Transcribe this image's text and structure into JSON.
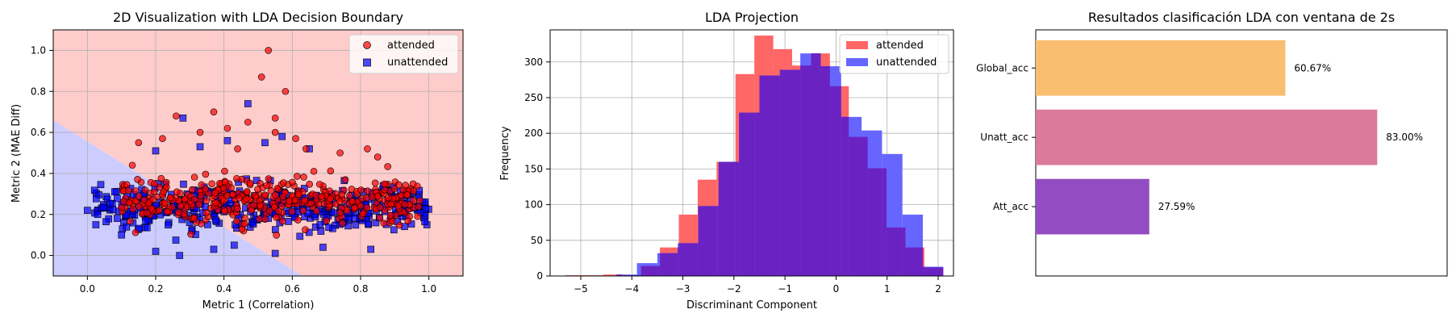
{
  "chart_data": [
    {
      "type": "scatter",
      "title": "2D Visualization with LDA Decision Boundary",
      "xlabel": "Metric 1 (Correlation)",
      "ylabel": "Metric 2 (MAE Diff)",
      "xlim": [
        -0.1,
        1.1
      ],
      "ylim": [
        -0.1,
        1.1
      ],
      "xticks": [
        "0.0",
        "0.2",
        "0.4",
        "0.6",
        "0.8",
        "1.0"
      ],
      "yticks": [
        "0.0",
        "0.2",
        "0.4",
        "0.6",
        "0.8",
        "1.0"
      ],
      "grid": true,
      "legend_position": "top-right",
      "boundary": {
        "line": [
          [
            -0.1,
            0.66
          ],
          [
            0.63,
            -0.1
          ]
        ],
        "region_above": "attended",
        "region_below": "unattended"
      },
      "series": [
        {
          "name": "attended",
          "marker": "circle",
          "color": "#ff0000",
          "region_color": "#ffcccc",
          "cloud": {
            "x_range": [
              0.1,
              0.98
            ],
            "y_center": 0.27,
            "y_spread": 0.08
          },
          "outliers": [
            [
              0.53,
              1.0
            ],
            [
              0.51,
              0.87
            ],
            [
              0.58,
              0.8
            ],
            [
              0.37,
              0.7
            ],
            [
              0.26,
              0.68
            ],
            [
              0.41,
              0.62
            ],
            [
              0.55,
              0.67
            ],
            [
              0.47,
              0.65
            ],
            [
              0.15,
              0.55
            ],
            [
              0.61,
              0.57
            ],
            [
              0.64,
              0.52
            ],
            [
              0.74,
              0.5
            ],
            [
              0.82,
              0.52
            ],
            [
              0.55,
              0.6
            ],
            [
              0.33,
              0.6
            ],
            [
              0.44,
              0.52
            ],
            [
              0.22,
              0.57
            ],
            [
              0.85,
              0.48
            ]
          ]
        },
        {
          "name": "unattended",
          "marker": "square",
          "color": "#0000ff",
          "region_color": "#ccccff",
          "cloud": {
            "x_range": [
              0.02,
              1.0
            ],
            "y_center": 0.23,
            "y_spread": 0.07
          },
          "outliers": [
            [
              0.47,
              0.74
            ],
            [
              0.28,
              0.67
            ],
            [
              0.57,
              0.58
            ],
            [
              0.41,
              0.56
            ],
            [
              0.52,
              0.55
            ],
            [
              0.33,
              0.53
            ],
            [
              0.2,
              0.51
            ],
            [
              0.65,
              0.52
            ],
            [
              0.0,
              0.22
            ],
            [
              0.03,
              0.2
            ],
            [
              0.1,
              0.1
            ],
            [
              0.2,
              0.02
            ],
            [
              0.37,
              0.03
            ],
            [
              0.55,
              0.01
            ],
            [
              0.69,
              0.04
            ],
            [
              0.83,
              0.03
            ],
            [
              0.27,
              0.0
            ],
            [
              0.43,
              0.05
            ]
          ]
        }
      ]
    },
    {
      "type": "histogram",
      "title": "LDA Projection",
      "xlabel": "Discriminant Component",
      "ylabel": "Frequency",
      "xlim": [
        -5.6,
        2.3
      ],
      "ylim": [
        0,
        345
      ],
      "xticks": [
        "−5",
        "−4",
        "−3",
        "−2",
        "−1",
        "0",
        "1",
        "2"
      ],
      "yticks": [
        "0",
        "50",
        "100",
        "150",
        "200",
        "250",
        "300"
      ],
      "grid": true,
      "legend_position": "top-right",
      "overlap_color": "#6a23c2",
      "series": [
        {
          "name": "attended",
          "color": "#ff6666",
          "edges": [
            -5.3,
            -4.93,
            -4.56,
            -4.19,
            -3.82,
            -3.45,
            -3.08,
            -2.71,
            -2.34,
            -1.97,
            -1.6,
            -1.23,
            -0.86,
            -0.49,
            -0.12,
            0.25,
            0.62,
            0.99,
            1.36,
            1.73,
            2.1
          ],
          "counts": [
            1,
            1,
            2,
            1,
            14,
            40,
            86,
            135,
            160,
            283,
            337,
            318,
            295,
            312,
            266,
            195,
            151,
            68,
            40,
            12
          ]
        },
        {
          "name": "unattended",
          "color": "#6666ff",
          "edges": [
            -4.3,
            -3.9,
            -3.5,
            -3.1,
            -2.7,
            -2.3,
            -1.9,
            -1.5,
            -1.1,
            -0.7,
            -0.3,
            0.1,
            0.5,
            0.9,
            1.3,
            1.7,
            2.1
          ],
          "counts": [
            2,
            18,
            32,
            46,
            98,
            160,
            229,
            281,
            289,
            312,
            294,
            223,
            204,
            171,
            86,
            13
          ]
        }
      ]
    },
    {
      "type": "bar",
      "orientation": "horizontal",
      "title": "Resultados clasificación LDA con ventana de 2s",
      "categories": [
        "Global_acc",
        "Unatt_acc",
        "Att_acc"
      ],
      "values": [
        60.67,
        83.0,
        27.59
      ],
      "labels": [
        "60.67%",
        "83.00%",
        "27.59%"
      ],
      "colors": [
        "#f9be70",
        "#db7a9b",
        "#934cc2"
      ],
      "xlim": [
        0,
        100
      ],
      "grid": false
    }
  ]
}
